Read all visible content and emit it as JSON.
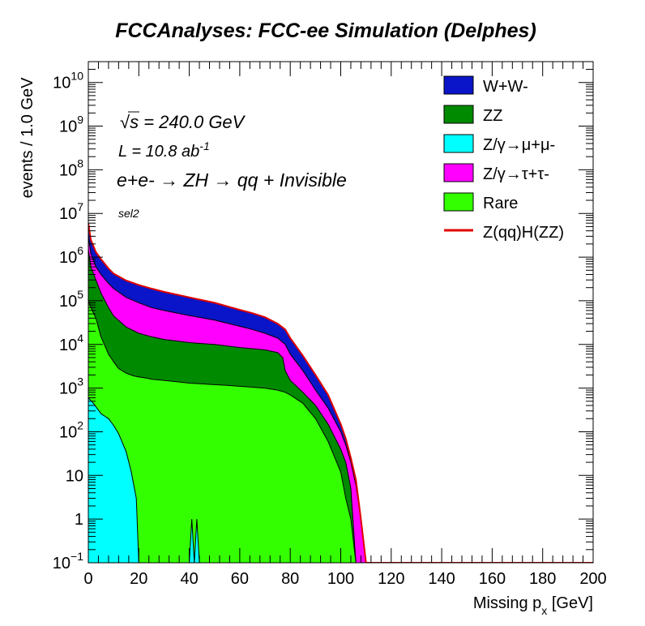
{
  "chart_data": {
    "type": "area",
    "title": "FCCAnalyses: FCC-ee Simulation (Delphes)",
    "xlabel": "Missing p_x [GeV]",
    "xlabel_main": "Missing p",
    "xlabel_sub": "x",
    "xlabel_unit": " [GeV]",
    "ylabel": "events / 1.0 GeV",
    "xlim": [
      0,
      200
    ],
    "ylim": [
      0.1,
      30000000000.0
    ],
    "yscale": "log",
    "x_ticks": [
      "0",
      "20",
      "40",
      "60",
      "80",
      "100",
      "120",
      "140",
      "160",
      "180",
      "200"
    ],
    "y_ticks": [
      {
        "base": "10",
        "exp": "−1",
        "value": 0.1
      },
      {
        "base": "1",
        "exp": "",
        "value": 1
      },
      {
        "base": "10",
        "exp": "",
        "value": 10
      },
      {
        "base": "10",
        "exp": "2",
        "value": 100
      },
      {
        "base": "10",
        "exp": "3",
        "value": 1000
      },
      {
        "base": "10",
        "exp": "4",
        "value": 10000
      },
      {
        "base": "10",
        "exp": "5",
        "value": 100000
      },
      {
        "base": "10",
        "exp": "6",
        "value": 1000000
      },
      {
        "base": "10",
        "exp": "7",
        "value": 10000000
      },
      {
        "base": "10",
        "exp": "8",
        "value": 100000000
      },
      {
        "base": "10",
        "exp": "9",
        "value": 1000000000
      },
      {
        "base": "10",
        "exp": "10",
        "value": 10000000000
      }
    ],
    "annotations": {
      "sqrt_s": "s = 240.0 GeV",
      "lumi_pre": "L = 10.8 ab",
      "lumi_exp": "-1",
      "process": "e+e- → ZH → qq + Invisible",
      "selection": "sel2"
    },
    "legend": {
      "position": "top-right",
      "entries": [
        {
          "label": "W+W-",
          "color": "#0a14c8",
          "style": "fill"
        },
        {
          "label": "ZZ",
          "color": "#008a00",
          "style": "fill"
        },
        {
          "label": "Z/γ→μ+μ-",
          "color": "#00ffff",
          "style": "fill"
        },
        {
          "label": "Z/γ→τ+τ-",
          "color": "#ff00ff",
          "style": "fill"
        },
        {
          "label": "Rare",
          "color": "#33ff00",
          "style": "fill"
        },
        {
          "label": "Z(qq)H(ZZ)",
          "color": "#e00000",
          "style": "line"
        }
      ]
    },
    "series": [
      {
        "name": "Z/γ→μ+μ-",
        "color": "#00ffff",
        "x": [
          0,
          2,
          5,
          8,
          10,
          12,
          15,
          17,
          19,
          20,
          25,
          29,
          33,
          35,
          40,
          41,
          42,
          43,
          44,
          45,
          50
        ],
        "values": [
          600,
          450,
          260,
          200,
          140,
          90,
          35,
          12,
          3,
          0.1,
          0.1,
          0.1,
          0.1,
          0.1,
          0.1,
          1,
          0.1,
          1,
          0.1,
          0.1,
          0.1
        ]
      },
      {
        "name": "Rare",
        "color": "#33ff00",
        "x": [
          0,
          1,
          3,
          5,
          8,
          10,
          12,
          15,
          18,
          20,
          23,
          25,
          30,
          35,
          40,
          45,
          50,
          55,
          60,
          65,
          70,
          75,
          78,
          80,
          85,
          90,
          95,
          100,
          102,
          104,
          106,
          110,
          200
        ],
        "values": [
          100000,
          70000,
          40000,
          15000,
          6000,
          4000,
          2800,
          2200,
          1900,
          1800,
          1700,
          1600,
          1500,
          1400,
          1300,
          1250,
          1200,
          1150,
          1100,
          1050,
          1000,
          900,
          800,
          700,
          450,
          200,
          60,
          12,
          3,
          1,
          0.1,
          0.1,
          0.1
        ]
      },
      {
        "name": "ZZ",
        "color": "#008a00",
        "x": [
          0,
          1,
          3,
          5,
          8,
          10,
          15,
          20,
          25,
          30,
          40,
          50,
          60,
          65,
          70,
          75,
          77,
          78,
          80,
          85,
          90,
          95,
          100,
          102,
          104,
          106,
          110,
          200
        ],
        "values": [
          1500000,
          600000,
          300000,
          150000,
          70000,
          45000,
          25000,
          18000,
          15000,
          13000,
          11000,
          10000,
          8500,
          8000,
          7500,
          6500,
          5000,
          2500,
          1500,
          800,
          400,
          150,
          40,
          20,
          5,
          0.1,
          0.1,
          0.1
        ]
      },
      {
        "name": "Z/γ→τ+τ-",
        "color": "#ff00ff",
        "x": [
          0,
          1,
          3,
          5,
          8,
          10,
          15,
          20,
          25,
          30,
          40,
          50,
          60,
          65,
          70,
          75,
          78,
          80,
          85,
          90,
          95,
          100,
          102,
          104,
          106,
          108,
          110,
          200
        ],
        "values": [
          3000000,
          1200000,
          600000,
          400000,
          250000,
          190000,
          120000,
          90000,
          70000,
          60000,
          46000,
          36000,
          26000,
          22000,
          18000,
          14000,
          10000,
          6000,
          2500,
          900,
          350,
          100,
          50,
          20,
          6,
          1,
          0.1,
          0.1
        ]
      },
      {
        "name": "W+W-",
        "color": "#0a14c8",
        "x": [
          0,
          1,
          3,
          5,
          8,
          10,
          15,
          20,
          25,
          30,
          40,
          50,
          60,
          65,
          70,
          75,
          78,
          80,
          85,
          90,
          95,
          100,
          102,
          104,
          106,
          108,
          110,
          200
        ],
        "values": [
          6000000,
          2500000,
          1300000,
          900000,
          550000,
          420000,
          290000,
          230000,
          190000,
          160000,
          120000,
          90000,
          62000,
          52000,
          42000,
          30000,
          22000,
          14000,
          5500,
          2000,
          700,
          150,
          70,
          25,
          8,
          1,
          0.1,
          0.1
        ]
      },
      {
        "name": "Z(qq)H(ZZ)",
        "color": "#e00000",
        "x": [
          0,
          1,
          3,
          5,
          8,
          10,
          15,
          20,
          25,
          30,
          40,
          50,
          60,
          65,
          70,
          75,
          78,
          80,
          85,
          90,
          95,
          100,
          102,
          104,
          106,
          108,
          110,
          200
        ],
        "values": [
          6000000,
          2500000,
          1300000,
          900000,
          550000,
          420000,
          290000,
          230000,
          190000,
          160000,
          120000,
          90000,
          62000,
          52000,
          42000,
          30000,
          22000,
          14000,
          5500,
          2000,
          700,
          150,
          70,
          25,
          8,
          1,
          0.1,
          0.1
        ]
      }
    ]
  }
}
